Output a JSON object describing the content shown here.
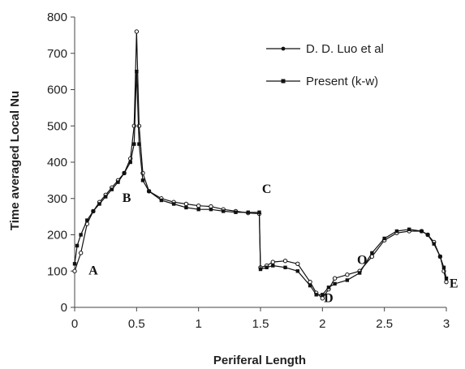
{
  "chart_data": {
    "type": "line",
    "xlabel": "Periferal Length",
    "ylabel": "Time averaged  Local Nu",
    "xlim": [
      0,
      3
    ],
    "ylim": [
      0,
      800
    ],
    "xticks": [
      "0",
      "0.5",
      "1",
      "1.5",
      "2",
      "2.5",
      "3"
    ],
    "yticks": [
      "0",
      "100",
      "200",
      "300",
      "400",
      "500",
      "600",
      "700",
      "800"
    ],
    "grid": false,
    "legend_position": "top-right",
    "annotations": [
      {
        "text": "A",
        "x": 0.15,
        "y": 90
      },
      {
        "text": "B",
        "x": 0.42,
        "y": 290
      },
      {
        "text": "C",
        "x": 1.55,
        "y": 315
      },
      {
        "text": "D",
        "x": 2.05,
        "y": 15
      },
      {
        "text": "O",
        "x": 2.32,
        "y": 120
      },
      {
        "text": "E",
        "x": 3.06,
        "y": 55
      }
    ],
    "series": [
      {
        "name": "D. D. Luo et al",
        "marker": "circle",
        "x": [
          0,
          0.05,
          0.1,
          0.15,
          0.2,
          0.25,
          0.3,
          0.35,
          0.4,
          0.45,
          0.48,
          0.5,
          0.52,
          0.55,
          0.6,
          0.7,
          0.8,
          0.9,
          1.0,
          1.1,
          1.2,
          1.3,
          1.4,
          1.49,
          1.5,
          1.55,
          1.6,
          1.7,
          1.8,
          1.9,
          1.95,
          2.0,
          2.05,
          2.1,
          2.2,
          2.3,
          2.4,
          2.5,
          2.6,
          2.7,
          2.8,
          2.85,
          2.9,
          2.95,
          2.98,
          3.0
        ],
        "y": [
          100,
          150,
          230,
          265,
          290,
          310,
          330,
          350,
          370,
          410,
          500,
          760,
          500,
          370,
          320,
          300,
          290,
          285,
          280,
          278,
          270,
          265,
          260,
          258,
          110,
          115,
          125,
          128,
          120,
          70,
          40,
          25,
          50,
          80,
          90,
          100,
          140,
          185,
          205,
          210,
          210,
          200,
          180,
          140,
          100,
          70
        ]
      },
      {
        "name": "Present (k-w)",
        "marker": "square",
        "x": [
          0,
          0.02,
          0.05,
          0.1,
          0.15,
          0.2,
          0.25,
          0.3,
          0.35,
          0.4,
          0.45,
          0.48,
          0.5,
          0.52,
          0.55,
          0.6,
          0.7,
          0.8,
          0.9,
          1.0,
          1.1,
          1.2,
          1.3,
          1.4,
          1.49,
          1.5,
          1.55,
          1.6,
          1.7,
          1.8,
          1.9,
          1.95,
          2.0,
          2.05,
          2.1,
          2.2,
          2.3,
          2.4,
          2.5,
          2.6,
          2.7,
          2.8,
          2.85,
          2.9,
          2.95,
          2.98,
          3.0
        ],
        "y": [
          120,
          170,
          200,
          240,
          265,
          285,
          305,
          325,
          345,
          370,
          400,
          450,
          650,
          450,
          350,
          320,
          295,
          285,
          275,
          270,
          270,
          265,
          262,
          262,
          262,
          105,
          110,
          115,
          110,
          100,
          60,
          35,
          35,
          55,
          65,
          75,
          95,
          150,
          190,
          210,
          215,
          210,
          200,
          175,
          140,
          110,
          80
        ]
      }
    ]
  }
}
